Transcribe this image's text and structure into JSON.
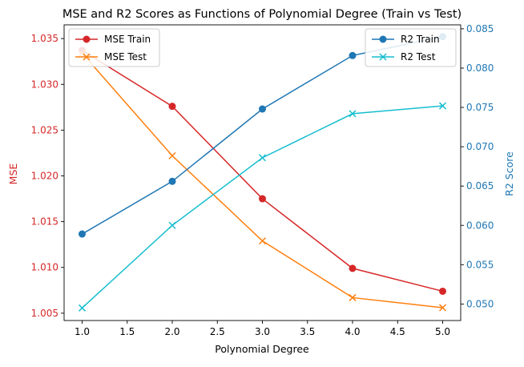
{
  "chart_data": {
    "type": "line",
    "title": "MSE and R2 Scores as Functions of Polynomial Degree (Train vs Test)",
    "xlabel": "Polynomial Degree",
    "x": [
      1,
      2,
      3,
      4,
      5
    ],
    "xlim": [
      0.8,
      5.2
    ],
    "xticks": [
      1.0,
      1.5,
      2.0,
      2.5,
      3.0,
      3.5,
      4.0,
      4.5,
      5.0
    ],
    "left_axis": {
      "label": "MSE",
      "color": "#d62728",
      "ylim": [
        1.0042,
        1.0365
      ],
      "ticks": [
        1.005,
        1.01,
        1.015,
        1.02,
        1.025,
        1.03,
        1.035
      ],
      "decimals": 3
    },
    "right_axis": {
      "label": "R2 Score",
      "color": "#1f77b4",
      "ylim": [
        0.0479,
        0.0855
      ],
      "ticks": [
        0.05,
        0.055,
        0.06,
        0.065,
        0.07,
        0.075,
        0.08,
        0.085
      ],
      "decimals": 3
    },
    "series": [
      {
        "name": "MSE Train",
        "axis": "left",
        "color": "#d62728",
        "marker": "circle",
        "values": [
          1.0337,
          1.0276,
          1.0175,
          1.0099,
          1.0074
        ]
      },
      {
        "name": "MSE Test",
        "axis": "left",
        "color": "#ff7f0e",
        "marker": "x",
        "values": [
          1.0334,
          1.0222,
          1.0129,
          1.0067,
          1.0056
        ]
      },
      {
        "name": "R2 Train",
        "axis": "right",
        "color": "#1f77b4",
        "marker": "circle",
        "values": [
          0.0589,
          0.0656,
          0.0748,
          0.0816,
          0.084
        ]
      },
      {
        "name": "R2 Test",
        "axis": "right",
        "color": "#17becf",
        "marker": "x",
        "values": [
          0.0495,
          0.06,
          0.0686,
          0.0742,
          0.0752
        ]
      }
    ],
    "legends": [
      {
        "position": "upper-left",
        "entries": [
          "MSE Train",
          "MSE Test"
        ]
      },
      {
        "position": "upper-right",
        "entries": [
          "R2 Train",
          "R2 Test"
        ]
      }
    ],
    "grid": false
  }
}
